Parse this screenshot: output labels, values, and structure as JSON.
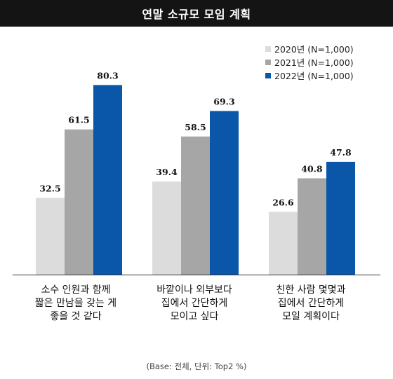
{
  "chart_data": {
    "type": "bar",
    "title": "연말 소규모 모임 계획",
    "categories": [
      "소수 인원과 함께\n짧은 만남을 갖는 게\n좋을 것 같다",
      "바깥이나 외부보다\n집에서 간단하게\n모이고 싶다",
      "친한 사람 몇몇과\n집에서 간단하게\n모일 계획이다"
    ],
    "series": [
      {
        "name": "2020년 (N=1,000)",
        "values": [
          32.5,
          39.4,
          26.6
        ],
        "labels": [
          "32.5",
          "39.4",
          "26.6"
        ],
        "color": "#dcdcdc"
      },
      {
        "name": "2021년 (N=1,000)",
        "values": [
          61.5,
          58.5,
          40.8
        ],
        "labels": [
          "61.5",
          "58.5",
          "40.8"
        ],
        "color": "#a6a6a6"
      },
      {
        "name": "2022년 (N=1,000)",
        "values": [
          80.3,
          69.3,
          47.8
        ],
        "labels": [
          "80.3",
          "69.3",
          "47.8"
        ],
        "color": "#0a56a8"
      }
    ],
    "ylim": [
      0,
      100
    ],
    "grid": false,
    "legend_position": "top-right",
    "footnote": "(Base: 전체, 단위: Top2 %)"
  }
}
